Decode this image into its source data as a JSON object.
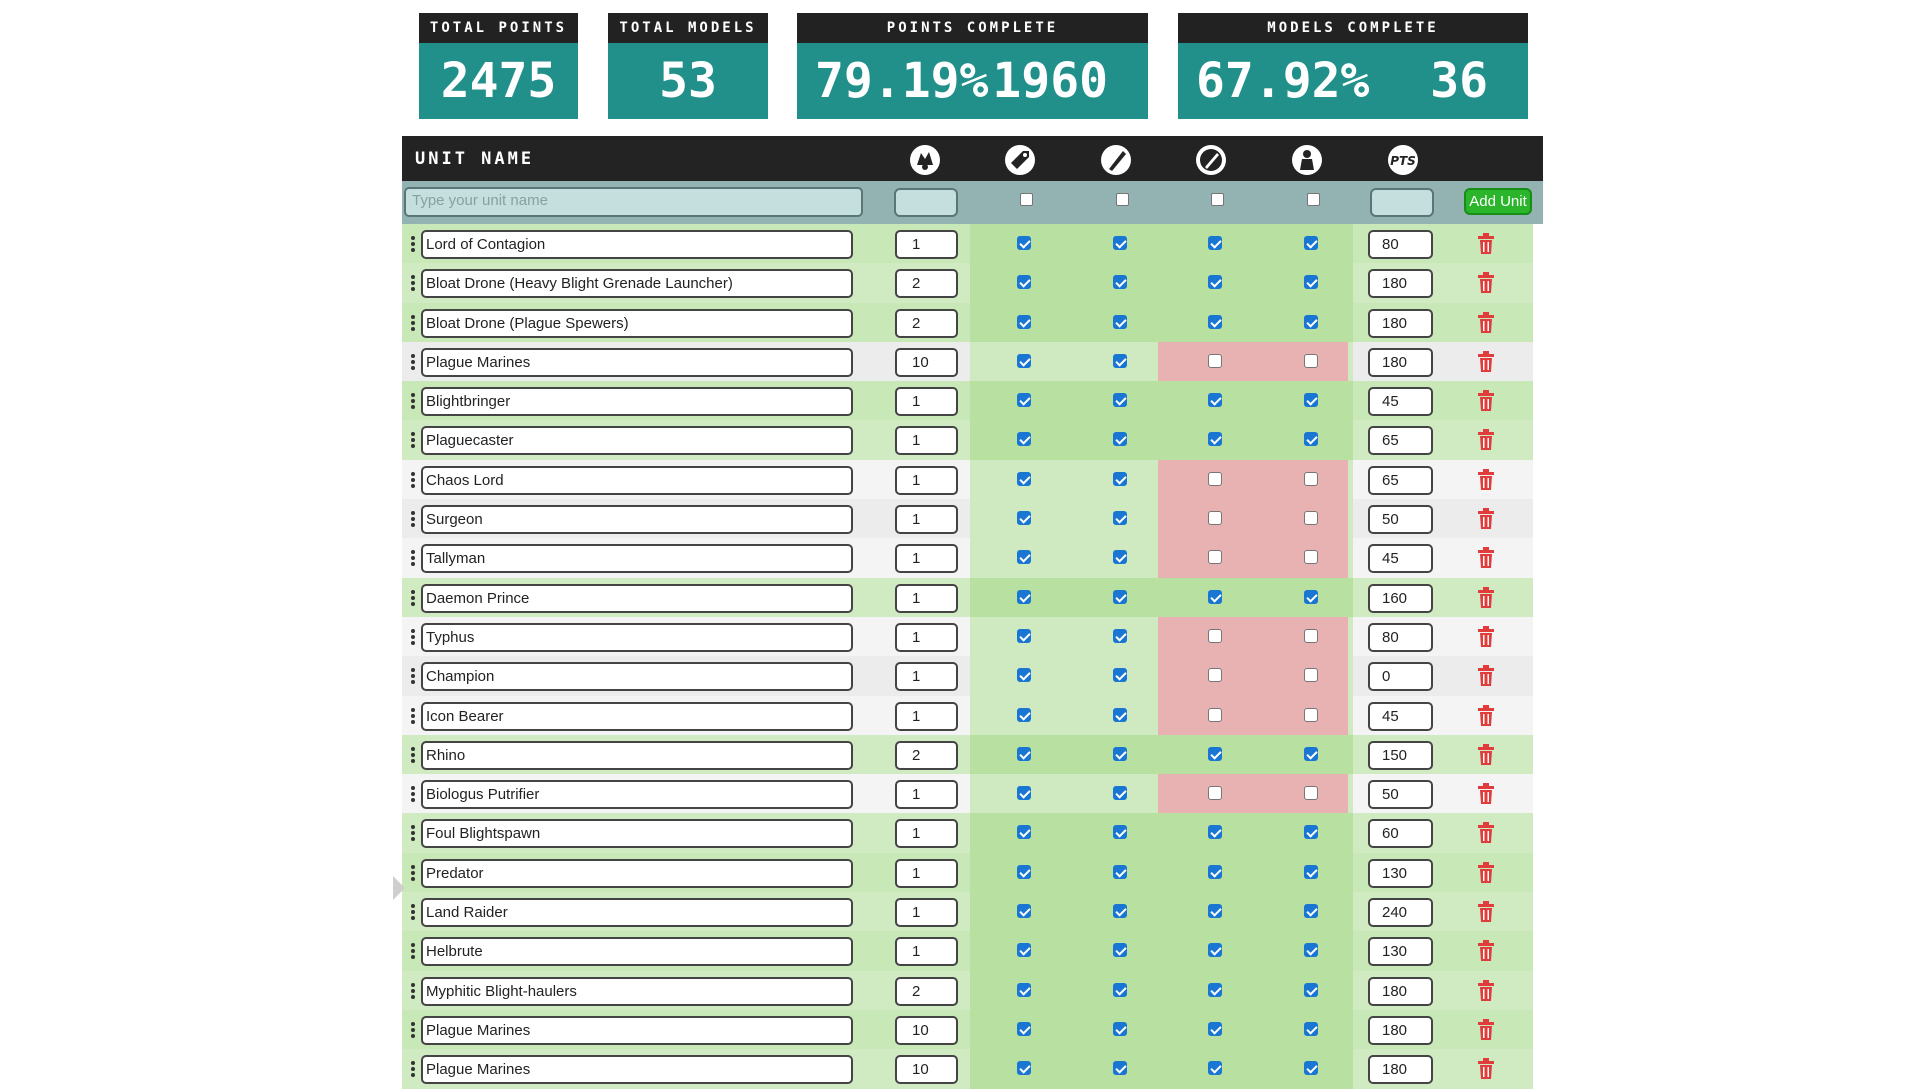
{
  "stats": {
    "total_points": {
      "label": "TOTAL POINTS",
      "value": "2475"
    },
    "total_models": {
      "label": "TOTAL MODELS",
      "value": "53"
    },
    "points_complete": {
      "label": "POINTS COMPLETE",
      "percent": "79.19%",
      "value": "1960"
    },
    "models_complete": {
      "label": "MODELS COMPLETE",
      "percent": "67.92%",
      "value": "36"
    }
  },
  "table": {
    "title": "UNIT NAME",
    "header_icons": [
      "models-count-icon",
      "built-icon",
      "primed-icon",
      "painted-icon",
      "based-icon",
      "points-icon"
    ],
    "pts_label": "PTS",
    "name_placeholder": "Type your unit name",
    "add_label": "Add Unit"
  },
  "colors": {
    "accent": "#22908a",
    "header": "#232323",
    "complete_row": "#c9e8b8",
    "incomplete_cell": "#e8b2b2",
    "checkbox": "#1976d2",
    "trash": "#e03c3c",
    "add_button": "#2bb52b"
  },
  "units": [
    {
      "name": "Lord of Contagion",
      "models": "1",
      "checks": [
        true,
        true,
        true,
        true
      ],
      "points": "80"
    },
    {
      "name": "Bloat Drone (Heavy Blight Grenade Launcher)",
      "models": "2",
      "checks": [
        true,
        true,
        true,
        true
      ],
      "points": "180"
    },
    {
      "name": "Bloat Drone (Plague Spewers)",
      "models": "2",
      "checks": [
        true,
        true,
        true,
        true
      ],
      "points": "180"
    },
    {
      "name": "Plague Marines",
      "models": "10",
      "checks": [
        true,
        true,
        false,
        false
      ],
      "points": "180"
    },
    {
      "name": "Blightbringer",
      "models": "1",
      "checks": [
        true,
        true,
        true,
        true
      ],
      "points": "45"
    },
    {
      "name": "Plaguecaster",
      "models": "1",
      "checks": [
        true,
        true,
        true,
        true
      ],
      "points": "65"
    },
    {
      "name": "Chaos Lord",
      "models": "1",
      "checks": [
        true,
        true,
        false,
        false
      ],
      "points": "65"
    },
    {
      "name": "Surgeon",
      "models": "1",
      "checks": [
        true,
        true,
        false,
        false
      ],
      "points": "50"
    },
    {
      "name": "Tallyman",
      "models": "1",
      "checks": [
        true,
        true,
        false,
        false
      ],
      "points": "45"
    },
    {
      "name": "Daemon Prince",
      "models": "1",
      "checks": [
        true,
        true,
        true,
        true
      ],
      "points": "160"
    },
    {
      "name": "Typhus",
      "models": "1",
      "checks": [
        true,
        true,
        false,
        false
      ],
      "points": "80"
    },
    {
      "name": "Champion",
      "models": "1",
      "checks": [
        true,
        true,
        false,
        false
      ],
      "points": "0"
    },
    {
      "name": "Icon Bearer",
      "models": "1",
      "checks": [
        true,
        true,
        false,
        false
      ],
      "points": "45"
    },
    {
      "name": "Rhino",
      "models": "2",
      "checks": [
        true,
        true,
        true,
        true
      ],
      "points": "150"
    },
    {
      "name": "Biologus Putrifier",
      "models": "1",
      "checks": [
        true,
        true,
        false,
        false
      ],
      "points": "50"
    },
    {
      "name": "Foul Blightspawn",
      "models": "1",
      "checks": [
        true,
        true,
        true,
        true
      ],
      "points": "60"
    },
    {
      "name": "Predator",
      "models": "1",
      "checks": [
        true,
        true,
        true,
        true
      ],
      "points": "130"
    },
    {
      "name": "Land Raider",
      "models": "1",
      "checks": [
        true,
        true,
        true,
        true
      ],
      "points": "240"
    },
    {
      "name": "Helbrute",
      "models": "1",
      "checks": [
        true,
        true,
        true,
        true
      ],
      "points": "130"
    },
    {
      "name": "Myphitic Blight-haulers",
      "models": "2",
      "checks": [
        true,
        true,
        true,
        true
      ],
      "points": "180"
    },
    {
      "name": "Plague Marines",
      "models": "10",
      "checks": [
        true,
        true,
        true,
        true
      ],
      "points": "180"
    },
    {
      "name": "Plague Marines",
      "models": "10",
      "checks": [
        true,
        true,
        true,
        true
      ],
      "points": "180"
    }
  ]
}
